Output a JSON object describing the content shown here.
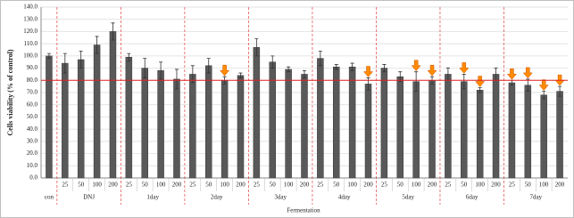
{
  "chart_data": {
    "type": "bar",
    "y_label": "Cells viability (% of control)",
    "x_label": "Fermentation",
    "ylim": [
      0,
      140
    ],
    "yticks": [
      {
        "value": 0,
        "label": "0.0"
      },
      {
        "value": 10,
        "label": "10.0"
      },
      {
        "value": 20,
        "label": "20.0"
      },
      {
        "value": 30,
        "label": "30.0"
      },
      {
        "value": 40,
        "label": "40.0"
      },
      {
        "value": 50,
        "label": "50.0"
      },
      {
        "value": 60,
        "label": "60.0"
      },
      {
        "value": 70,
        "label": "70.0"
      },
      {
        "value": 80,
        "label": "80.0"
      },
      {
        "value": 90,
        "label": "90.0"
      },
      {
        "value": 100,
        "label": "100.0"
      },
      {
        "value": 110,
        "label": "110.0"
      },
      {
        "value": 120,
        "label": "120.0"
      },
      {
        "value": 130,
        "label": "130.0"
      },
      {
        "value": 140,
        "label": "140.0"
      }
    ],
    "grid": true,
    "color": "#595959",
    "reference_line": 80,
    "reference_color": "#e02020",
    "arrow_color": "#ff8c00",
    "groups": [
      {
        "label": "con",
        "categories": [
          null
        ],
        "values": [
          100
        ],
        "errors": [
          2
        ],
        "arrows": [
          false
        ]
      },
      {
        "label": "DNJ",
        "categories": [
          "25",
          "50",
          "100",
          "200"
        ],
        "values": [
          94,
          97,
          109,
          120
        ],
        "errors": [
          8,
          7,
          7,
          7
        ],
        "arrows": [
          false,
          false,
          false,
          false
        ]
      },
      {
        "label": "1day",
        "categories": [
          "25",
          "50",
          "100",
          "200"
        ],
        "values": [
          99,
          90,
          88,
          81
        ],
        "errors": [
          3,
          8,
          7,
          8
        ],
        "arrows": [
          false,
          false,
          false,
          false
        ]
      },
      {
        "label": "2day",
        "categories": [
          "25",
          "50",
          "100",
          "200"
        ],
        "values": [
          85,
          92,
          80,
          84
        ],
        "errors": [
          7,
          6,
          3,
          2
        ],
        "arrows": [
          false,
          false,
          true,
          false
        ]
      },
      {
        "label": "3day",
        "categories": [
          "25",
          "50",
          "100",
          "200"
        ],
        "values": [
          107,
          95,
          89,
          85
        ],
        "errors": [
          7,
          5,
          2,
          3
        ],
        "arrows": [
          false,
          false,
          false,
          false
        ]
      },
      {
        "label": "4day",
        "categories": [
          "25",
          "50",
          "100",
          "200"
        ],
        "values": [
          98,
          91,
          91,
          77
        ],
        "errors": [
          6,
          2,
          3,
          5
        ],
        "arrows": [
          false,
          false,
          false,
          true
        ]
      },
      {
        "label": "5day",
        "categories": [
          "25",
          "50",
          "100",
          "200"
        ],
        "values": [
          90,
          83,
          79,
          80
        ],
        "errors": [
          3,
          4,
          8,
          3
        ],
        "arrows": [
          false,
          false,
          true,
          true
        ]
      },
      {
        "label": "6day",
        "categories": [
          "25",
          "50",
          "100",
          "200"
        ],
        "values": [
          85,
          79,
          72,
          85
        ],
        "errors": [
          5,
          6,
          2,
          5
        ],
        "arrows": [
          false,
          true,
          true,
          false
        ]
      },
      {
        "label": "7day",
        "categories": [
          "25",
          "50",
          "100",
          "200"
        ],
        "values": [
          78,
          76,
          68,
          71
        ],
        "errors": [
          2,
          5,
          3,
          4
        ],
        "arrows": [
          true,
          true,
          true,
          true
        ]
      }
    ]
  }
}
